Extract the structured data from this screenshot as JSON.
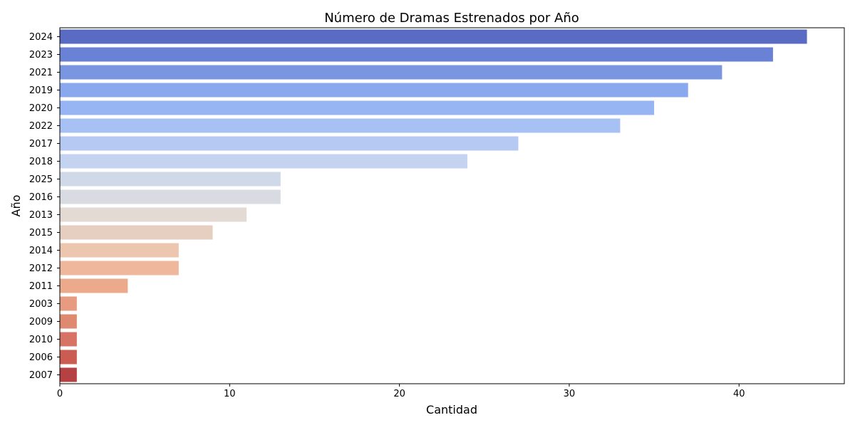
{
  "chart_data": {
    "type": "bar",
    "orientation": "horizontal",
    "title": "Número de Dramas Estrenados por Año",
    "xlabel": "Cantidad",
    "ylabel": "Año",
    "xlim": [
      0,
      46.2
    ],
    "x_ticks": [
      0,
      10,
      20,
      30,
      40
    ],
    "grid": false,
    "categories": [
      "2024",
      "2023",
      "2021",
      "2019",
      "2020",
      "2022",
      "2017",
      "2018",
      "2025",
      "2016",
      "2013",
      "2015",
      "2014",
      "2012",
      "2011",
      "2003",
      "2009",
      "2010",
      "2006",
      "2007"
    ],
    "values": [
      44,
      42,
      39,
      37,
      35,
      33,
      27,
      24,
      13,
      13,
      11,
      9,
      7,
      7,
      4,
      1,
      1,
      1,
      1,
      1
    ],
    "colors": [
      "#5a6bc4",
      "#6a82d6",
      "#7b96e0",
      "#8aa8ed",
      "#96b5f2",
      "#a7c1f5",
      "#b6c9f3",
      "#c3d3f0",
      "#cfd9e8",
      "#d9dbe2",
      "#e2dad3",
      "#e6cfc1",
      "#ecc6ae",
      "#efb89c",
      "#ebaa8c",
      "#e79c81",
      "#df8a70",
      "#d77364",
      "#ca5c52",
      "#b64143"
    ],
    "color_map": "coolwarm"
  }
}
